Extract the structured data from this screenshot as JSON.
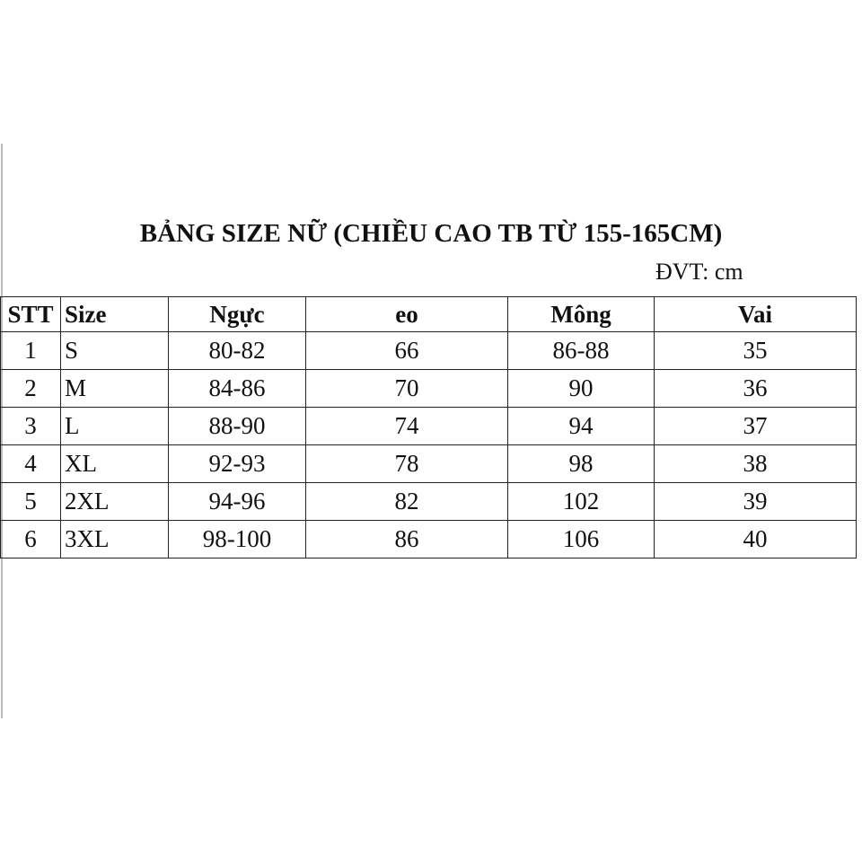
{
  "title": "BẢNG SIZE NỮ (CHIỀU CAO TB TỪ 155-165CM)",
  "unit": "ĐVT: cm",
  "table": {
    "headers": [
      "STT",
      "Size",
      "Ngực",
      "eo",
      "Mông",
      "Vai"
    ],
    "rows": [
      [
        "1",
        "S",
        "80-82",
        "66",
        "86-88",
        "35"
      ],
      [
        "2",
        "M",
        "84-86",
        "70",
        "90",
        "36"
      ],
      [
        "3",
        "L",
        "88-90",
        "74",
        "94",
        "37"
      ],
      [
        "4",
        "XL",
        "92-93",
        "78",
        "98",
        "38"
      ],
      [
        "5",
        "2XL",
        "94-96",
        "82",
        "102",
        "39"
      ],
      [
        "6",
        "3XL",
        "98-100",
        "86",
        "106",
        "40"
      ]
    ]
  }
}
